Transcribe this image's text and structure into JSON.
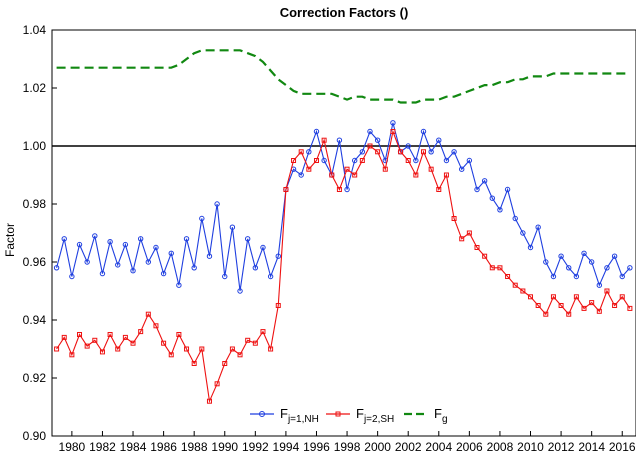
{
  "chart_data": {
    "type": "line",
    "title": "Correction Factors ()",
    "y_label": "Factor",
    "x": [
      1979,
      1979.5,
      1980,
      1980.5,
      1981,
      1981.5,
      1982,
      1982.5,
      1983,
      1983.5,
      1984,
      1984.5,
      1985,
      1985.5,
      1986,
      1986.5,
      1987,
      1987.5,
      1988,
      1988.5,
      1989,
      1989.5,
      1990,
      1990.5,
      1991,
      1991.5,
      1992,
      1992.5,
      1993,
      1993.5,
      1994,
      1994.5,
      1995,
      1995.5,
      1996,
      1996.5,
      1997,
      1997.5,
      1998,
      1998.5,
      1999,
      1999.5,
      2000,
      2000.5,
      2001,
      2001.5,
      2002,
      2002.5,
      2003,
      2003.5,
      2004,
      2004.5,
      2005,
      2005.5,
      2006,
      2006.5,
      2007,
      2007.5,
      2008,
      2008.5,
      2009,
      2009.5,
      2010,
      2010.5,
      2011,
      2011.5,
      2012,
      2012.5,
      2013,
      2013.5,
      2014,
      2014.5,
      2015,
      2015.5,
      2016,
      2016.5
    ],
    "series": [
      {
        "name": "F",
        "subscript": "j=1,NH",
        "color": "#1f3fe0",
        "marker": "circle",
        "dash": false,
        "values": [
          0.958,
          0.968,
          0.955,
          0.966,
          0.96,
          0.969,
          0.956,
          0.967,
          0.959,
          0.966,
          0.957,
          0.968,
          0.96,
          0.965,
          0.956,
          0.963,
          0.952,
          0.968,
          0.958,
          0.975,
          0.962,
          0.98,
          0.955,
          0.972,
          0.95,
          0.968,
          0.958,
          0.965,
          0.955,
          0.962,
          0.985,
          0.992,
          0.99,
          0.998,
          1.005,
          0.995,
          0.99,
          1.002,
          0.985,
          0.995,
          0.998,
          1.005,
          1.002,
          0.995,
          1.008,
          0.998,
          1.0,
          0.995,
          1.005,
          0.998,
          1.002,
          0.995,
          0.998,
          0.992,
          0.995,
          0.985,
          0.988,
          0.982,
          0.978,
          0.985,
          0.975,
          0.97,
          0.965,
          0.972,
          0.96,
          0.955,
          0.962,
          0.958,
          0.955,
          0.963,
          0.96,
          0.952,
          0.958,
          0.962,
          0.955,
          0.958
        ]
      },
      {
        "name": "F",
        "subscript": "j=2,SH",
        "color": "#ee1111",
        "marker": "square",
        "dash": false,
        "values": [
          0.93,
          0.934,
          0.928,
          0.935,
          0.931,
          0.933,
          0.929,
          0.935,
          0.93,
          0.934,
          0.932,
          0.936,
          0.942,
          0.938,
          0.932,
          0.928,
          0.935,
          0.93,
          0.925,
          0.93,
          0.912,
          0.918,
          0.925,
          0.93,
          0.928,
          0.933,
          0.932,
          0.936,
          0.93,
          0.945,
          0.985,
          0.995,
          0.998,
          0.992,
          0.995,
          1.002,
          0.99,
          0.985,
          0.992,
          0.99,
          0.995,
          1.0,
          0.998,
          0.992,
          1.005,
          0.998,
          0.995,
          0.99,
          0.998,
          0.992,
          0.985,
          0.99,
          0.975,
          0.968,
          0.97,
          0.965,
          0.962,
          0.958,
          0.958,
          0.955,
          0.952,
          0.95,
          0.948,
          0.945,
          0.942,
          0.948,
          0.945,
          0.942,
          0.948,
          0.944,
          0.946,
          0.943,
          0.95,
          0.945,
          0.948,
          0.944
        ]
      },
      {
        "name": "F",
        "subscript": "g",
        "color": "#118811",
        "marker": "none",
        "dash": true,
        "values": [
          1.027,
          1.027,
          1.027,
          1.027,
          1.027,
          1.027,
          1.027,
          1.027,
          1.027,
          1.027,
          1.027,
          1.027,
          1.027,
          1.027,
          1.027,
          1.027,
          1.028,
          1.03,
          1.032,
          1.033,
          1.033,
          1.033,
          1.033,
          1.033,
          1.033,
          1.032,
          1.031,
          1.029,
          1.026,
          1.023,
          1.021,
          1.019,
          1.018,
          1.018,
          1.018,
          1.018,
          1.018,
          1.017,
          1.016,
          1.017,
          1.017,
          1.016,
          1.016,
          1.016,
          1.016,
          1.015,
          1.015,
          1.015,
          1.016,
          1.016,
          1.016,
          1.017,
          1.017,
          1.018,
          1.019,
          1.02,
          1.021,
          1.021,
          1.022,
          1.022,
          1.023,
          1.023,
          1.024,
          1.024,
          1.024,
          1.025,
          1.025,
          1.025,
          1.025,
          1.025,
          1.025,
          1.025,
          1.025,
          1.025,
          1.025,
          1.025
        ]
      }
    ],
    "reference_line": {
      "value": 1.0,
      "color": "#000000"
    },
    "xlim": [
      1978.7,
      2016.9
    ],
    "ylim": [
      0.9,
      1.04
    ],
    "xticks": [
      1980,
      1982,
      1984,
      1986,
      1988,
      1990,
      1992,
      1994,
      1996,
      1998,
      2000,
      2002,
      2004,
      2006,
      2008,
      2010,
      2012,
      2014,
      2016
    ],
    "yticks": [
      {
        "value": 0.9,
        "label": "0.90"
      },
      0.92,
      0.94,
      0.96,
      0.98,
      {
        "value": 1.0,
        "label": "1.00"
      },
      1.02,
      1.04
    ],
    "grid": false,
    "legend": "bottom"
  }
}
